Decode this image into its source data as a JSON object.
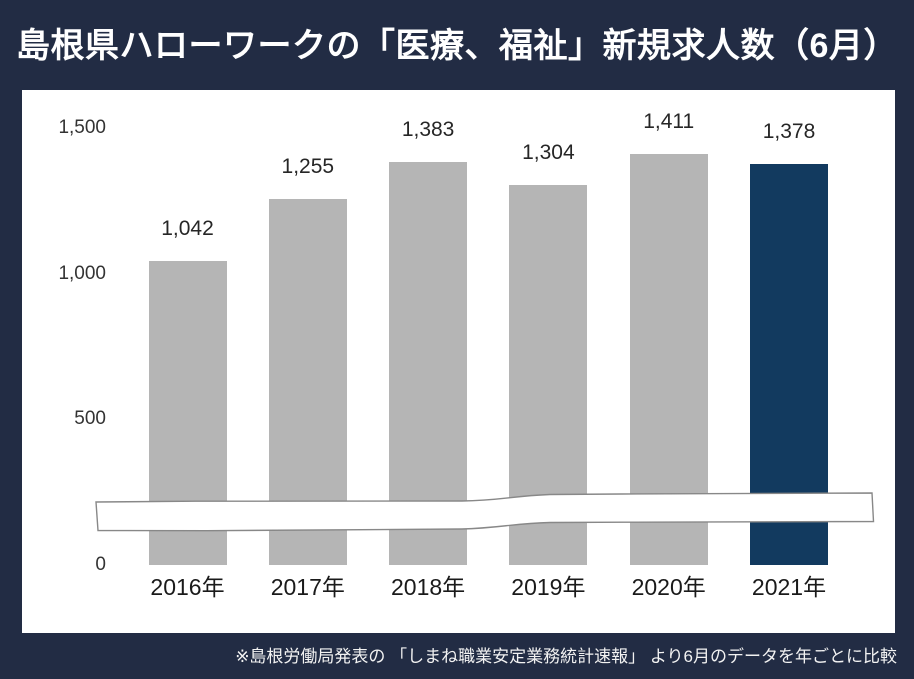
{
  "title": "島根県ハローワークの「医療、福祉」新規求人数（6月）",
  "footer": {
    "note": "※島根労働局発表の 「しまね職業安定業務統計速報」 より6月のデータを年ごとに比較"
  },
  "colors": {
    "background": "#222c44",
    "panel": "#ffffff",
    "bar_default": "#b5b5b5",
    "bar_highlight": "#123a5f",
    "value_label_text": "#262626",
    "axis_tick_text": "#333333",
    "category_text": "#1a1a1a",
    "band_fill": "#ffffff",
    "band_stroke": "#888888",
    "title_text": "#ffffff"
  },
  "chart_data": {
    "type": "bar",
    "title": "島根県ハローワークの「医療、福祉」新規求人数（6月）",
    "categories": [
      "2016年",
      "2017年",
      "2018年",
      "2019年",
      "2020年",
      "2021年"
    ],
    "values": [
      1042,
      1255,
      1383,
      1304,
      1411,
      1378
    ],
    "value_labels": [
      "1,042",
      "1,255",
      "1,383",
      "1,304",
      "1,411",
      "1,378"
    ],
    "highlight_index": 5,
    "xlabel": "",
    "ylabel": "",
    "ylim": [
      0,
      1500
    ],
    "y_ticks": [
      {
        "value": 1500,
        "label": "1,500"
      },
      {
        "value": 1000,
        "label": "1,000"
      },
      {
        "value": 500,
        "label": "500"
      },
      {
        "value": 0,
        "label": "0"
      }
    ],
    "grid": false,
    "legend": false,
    "annotations": [
      "hand-drawn axis-break ribbon across bars near the bottom"
    ]
  }
}
